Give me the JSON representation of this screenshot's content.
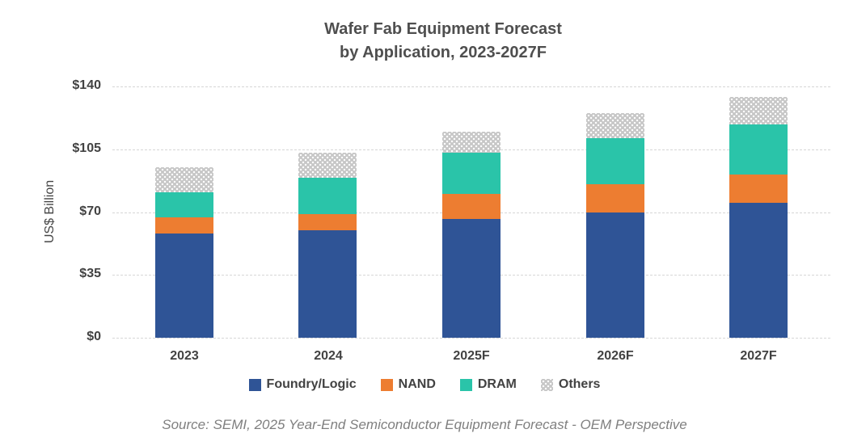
{
  "title": {
    "line1": "Wafer Fab Equipment Forecast",
    "line2": "by Application, 2023-2027F"
  },
  "y_axis": {
    "label": "US$ Billion",
    "tick_labels": [
      "$140",
      "$105",
      "$70",
      "$35",
      "$0"
    ],
    "tick_values": [
      140,
      105,
      70,
      35,
      0
    ]
  },
  "source": "Source: SEMI, 2025 Year-End Semiconductor Equipment Forecast - OEM Perspective",
  "colors": {
    "foundry_logic": "#2f5496",
    "nand": "#ed7d31",
    "dram": "#2ac4a9",
    "others": "#c7c7c7",
    "text": "#424242",
    "grid": "#d6d6d6",
    "source_text": "#7f7f7f"
  },
  "chart_data": {
    "type": "bar",
    "stacked": true,
    "title": "Wafer Fab Equipment Forecast by Application, 2023-2027F",
    "xlabel": "",
    "ylabel": "US$ Billion",
    "ylim": [
      0,
      140
    ],
    "ytick_interval": 35,
    "grid": "horizontal-dashed",
    "legend_position": "bottom",
    "categories": [
      "2023",
      "2024",
      "2025F",
      "2026F",
      "2027F"
    ],
    "series": [
      {
        "name": "Foundry/Logic",
        "color": "#2f5496",
        "pattern": "solid",
        "values": [
          58,
          60,
          66,
          70,
          75
        ]
      },
      {
        "name": "NAND",
        "color": "#ed7d31",
        "pattern": "solid",
        "values": [
          9,
          9,
          14,
          15.5,
          16
        ]
      },
      {
        "name": "DRAM",
        "color": "#2ac4a9",
        "pattern": "solid",
        "values": [
          14,
          20,
          23,
          25.5,
          28
        ]
      },
      {
        "name": "Others",
        "color": "#c7c7c7",
        "pattern": "dots",
        "values": [
          14,
          14,
          12,
          14,
          15
        ]
      }
    ],
    "totals": [
      95,
      103,
      115,
      125,
      134
    ]
  }
}
